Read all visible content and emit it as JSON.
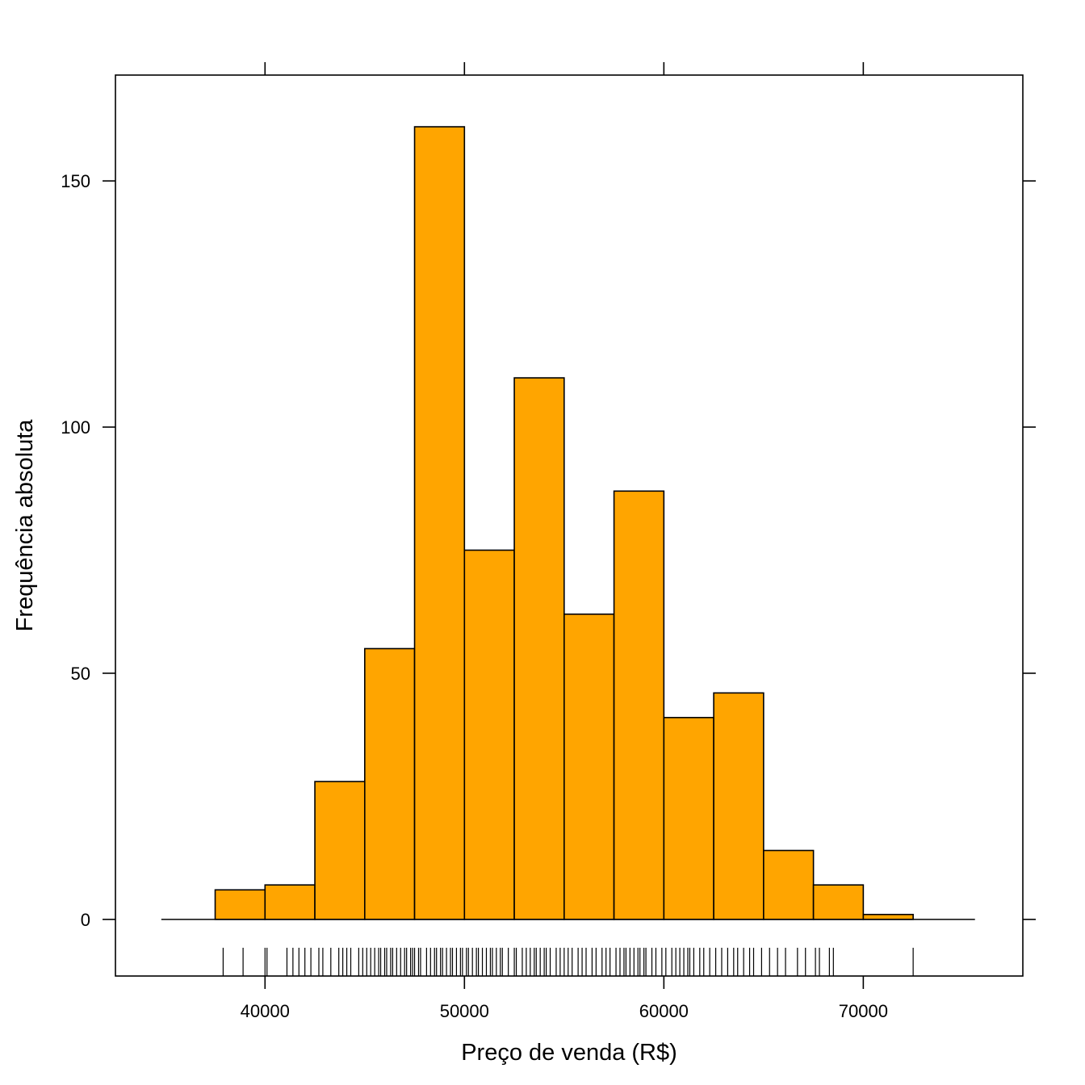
{
  "chart_data": {
    "type": "bar",
    "subtype": "histogram",
    "xlabel": "Preço de venda (R$)",
    "ylabel": "Frequência absoluta",
    "bin_edges": [
      37500,
      40000,
      42500,
      45000,
      47500,
      50000,
      52500,
      55000,
      57500,
      60000,
      62500,
      65000,
      67500,
      70000,
      72500
    ],
    "values": [
      6,
      7,
      28,
      55,
      161,
      75,
      110,
      62,
      87,
      41,
      46,
      14,
      7,
      1
    ],
    "xlim": [
      32500,
      78000
    ],
    "ylim": [
      -11.5,
      171.5
    ],
    "xticks": [
      40000,
      50000,
      60000,
      70000
    ],
    "xtick_labels": [
      "40000",
      "50000",
      "60000",
      "70000"
    ],
    "yticks": [
      0,
      50,
      100,
      150
    ],
    "ytick_labels": [
      "0",
      "50",
      "100",
      "150"
    ],
    "baseline_range": [
      34800,
      75600
    ],
    "bar_color": "#FFA500",
    "rug": [
      37900,
      38900,
      40000,
      40100,
      41100,
      41400,
      41700,
      42000,
      42300,
      42700,
      42900,
      43300,
      43700,
      43900,
      44100,
      44300,
      44700,
      44900,
      45100,
      45300,
      45500,
      45700,
      45800,
      46000,
      46100,
      46300,
      46400,
      46600,
      46800,
      47000,
      47100,
      47300,
      47400,
      47500,
      47700,
      47800,
      48100,
      48300,
      48500,
      48600,
      48800,
      48900,
      49100,
      49300,
      49400,
      49600,
      49800,
      49900,
      50100,
      50200,
      50400,
      50600,
      50700,
      50900,
      51100,
      51300,
      51400,
      51600,
      51800,
      51900,
      52200,
      52500,
      52600,
      52900,
      53100,
      53300,
      53500,
      53600,
      53800,
      54000,
      54100,
      54300,
      54600,
      54800,
      55000,
      55200,
      55400,
      55700,
      55900,
      56100,
      56400,
      56600,
      56900,
      57100,
      57300,
      57600,
      57800,
      58000,
      58100,
      58300,
      58500,
      58700,
      58800,
      59000,
      59100,
      59400,
      59600,
      59900,
      60100,
      60400,
      60600,
      60800,
      61000,
      61200,
      61300,
      61500,
      61800,
      62000,
      62300,
      62600,
      62900,
      63200,
      63500,
      63700,
      64000,
      64300,
      64500,
      64900,
      65300,
      65700,
      66100,
      66700,
      67100,
      67600,
      67800,
      68300,
      68500,
      72500
    ]
  }
}
